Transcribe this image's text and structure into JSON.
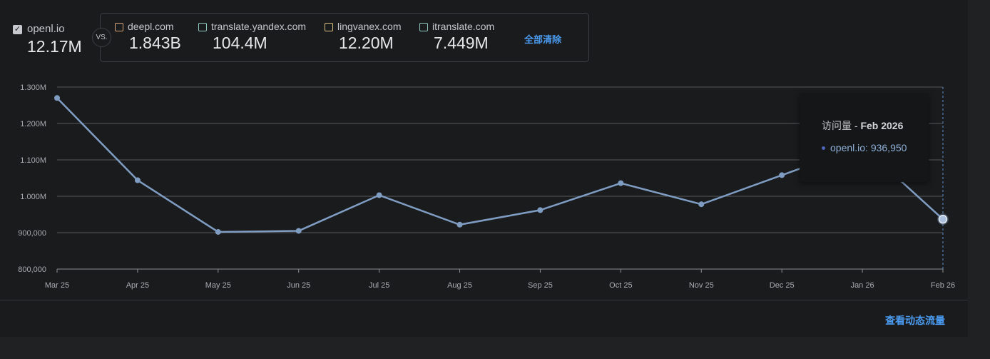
{
  "primary": {
    "name": "openl.io",
    "value": "12.17M",
    "checked": true
  },
  "vs_label": "VS.",
  "competitors": [
    {
      "name": "deepl.com",
      "value": "1.843B",
      "color": "#d8a57a"
    },
    {
      "name": "translate.yandex.com",
      "value": "104.4M",
      "color": "#8fc9be"
    },
    {
      "name": "lingvanex.com",
      "value": "12.20M",
      "color": "#d9bf7f"
    },
    {
      "name": "itranslate.com",
      "value": "7.449M",
      "color": "#8fc9be"
    }
  ],
  "clear_all_label": "全部清除",
  "tooltip": {
    "title_prefix": "访问量 - ",
    "title_month": "Feb 2026",
    "series_label": "openl.io:",
    "value": "936,950"
  },
  "view_dynamic_label": "查看动态流量",
  "colors": {
    "line": "#7f9cc2",
    "grid": "#55585c",
    "accent": "#4b9cf2"
  },
  "chart_data": {
    "type": "line",
    "title": "",
    "xlabel": "",
    "ylabel": "",
    "categories": [
      "Mar 25",
      "Apr 25",
      "May 25",
      "Jun 25",
      "Jul 25",
      "Aug 25",
      "Sep 25",
      "Oct 25",
      "Nov 25",
      "Dec 25",
      "Jan 26",
      "Feb 26"
    ],
    "series": [
      {
        "name": "openl.io",
        "values": [
          1270000,
          1044000,
          902000,
          905000,
          1003000,
          922000,
          962000,
          1036000,
          978000,
          1058000,
          1138000,
          936950
        ]
      }
    ],
    "ylim": [
      800000,
      1300000
    ],
    "yticks": [
      800000,
      900000,
      1000000,
      1100000,
      1200000,
      1300000
    ],
    "ytick_labels": [
      "800,000",
      "900,000",
      "1.000M",
      "1.100M",
      "1.200M",
      "1.300M"
    ],
    "grid": true,
    "highlight_index": 11
  }
}
